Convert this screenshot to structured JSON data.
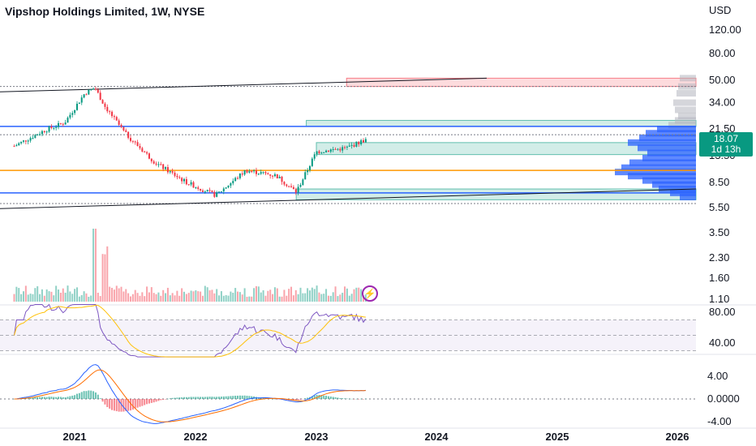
{
  "header": {
    "title": "Vipshop Holdings Limited, 1W, NYSE",
    "currency": "USD"
  },
  "price_badge": {
    "price": "18.07",
    "countdown": "1d 13h",
    "color": "#089981"
  },
  "colors": {
    "up": "#089981",
    "down": "#f23645",
    "blue_line": "#2962ff",
    "orange_line": "#ff9800",
    "rsi_line": "#7e57c2",
    "macd_line": "#2962ff",
    "signal_line": "#ff6d00"
  },
  "icons": {
    "alert": "lightning-icon"
  },
  "chart_data": [
    {
      "type": "candlestick",
      "title": "Vipshop Holdings Limited, 1W, NYSE",
      "scale": "log",
      "y_ticks": [
        "120.00",
        "80.00",
        "50.00",
        "34.00",
        "21.50",
        "13.50",
        "8.50",
        "5.50"
      ],
      "x_ticks": [
        "2021",
        "2022",
        "2023",
        "2024",
        "2025",
        "2026"
      ],
      "last_price": 18.07,
      "approx_close_path": [
        {
          "x": "2020-07",
          "y": 16
        },
        {
          "x": "2020-10",
          "y": 21
        },
        {
          "x": "2020-12",
          "y": 24
        },
        {
          "x": "2021-02",
          "y": 40
        },
        {
          "x": "2021-03",
          "y": 44
        },
        {
          "x": "2021-04",
          "y": 32
        },
        {
          "x": "2021-06",
          "y": 20
        },
        {
          "x": "2021-09",
          "y": 12
        },
        {
          "x": "2021-12",
          "y": 8.6
        },
        {
          "x": "2022-03",
          "y": 6.8
        },
        {
          "x": "2022-06",
          "y": 10.5
        },
        {
          "x": "2022-09",
          "y": 9.6
        },
        {
          "x": "2022-11",
          "y": 7.2
        },
        {
          "x": "2023-01",
          "y": 14.5
        },
        {
          "x": "2023-04",
          "y": 15.5
        },
        {
          "x": "2023-06",
          "y": 18.07
        }
      ],
      "horizontal_levels": [
        {
          "y": 22.5,
          "color": "#2962ff"
        },
        {
          "y": 10.5,
          "color": "#ff9800"
        },
        {
          "y": 7.1,
          "color": "#2962ff"
        }
      ],
      "zones": [
        {
          "type": "resistance",
          "y_from": 45,
          "y_to": 52,
          "color": "#f23645"
        },
        {
          "type": "support",
          "y_from": 22.5,
          "y_to": 25,
          "color": "#089981"
        },
        {
          "type": "support",
          "y_from": 13.8,
          "y_to": 17,
          "color": "#089981"
        },
        {
          "type": "support",
          "y_from": 6.3,
          "y_to": 7.6,
          "color": "#089981"
        }
      ]
    },
    {
      "type": "bar",
      "title": "Volume",
      "y_ticks": [
        "3.50",
        "2.30",
        "1.60",
        "1.10"
      ]
    },
    {
      "type": "line",
      "title": "RSI",
      "y_ticks": [
        "80.00",
        "40.00"
      ],
      "ylim": [
        20,
        90
      ]
    },
    {
      "type": "line",
      "title": "MACD",
      "y_ticks": [
        "4.00",
        "0.0000",
        "-4.00"
      ],
      "ylim": [
        -5,
        6
      ]
    }
  ]
}
